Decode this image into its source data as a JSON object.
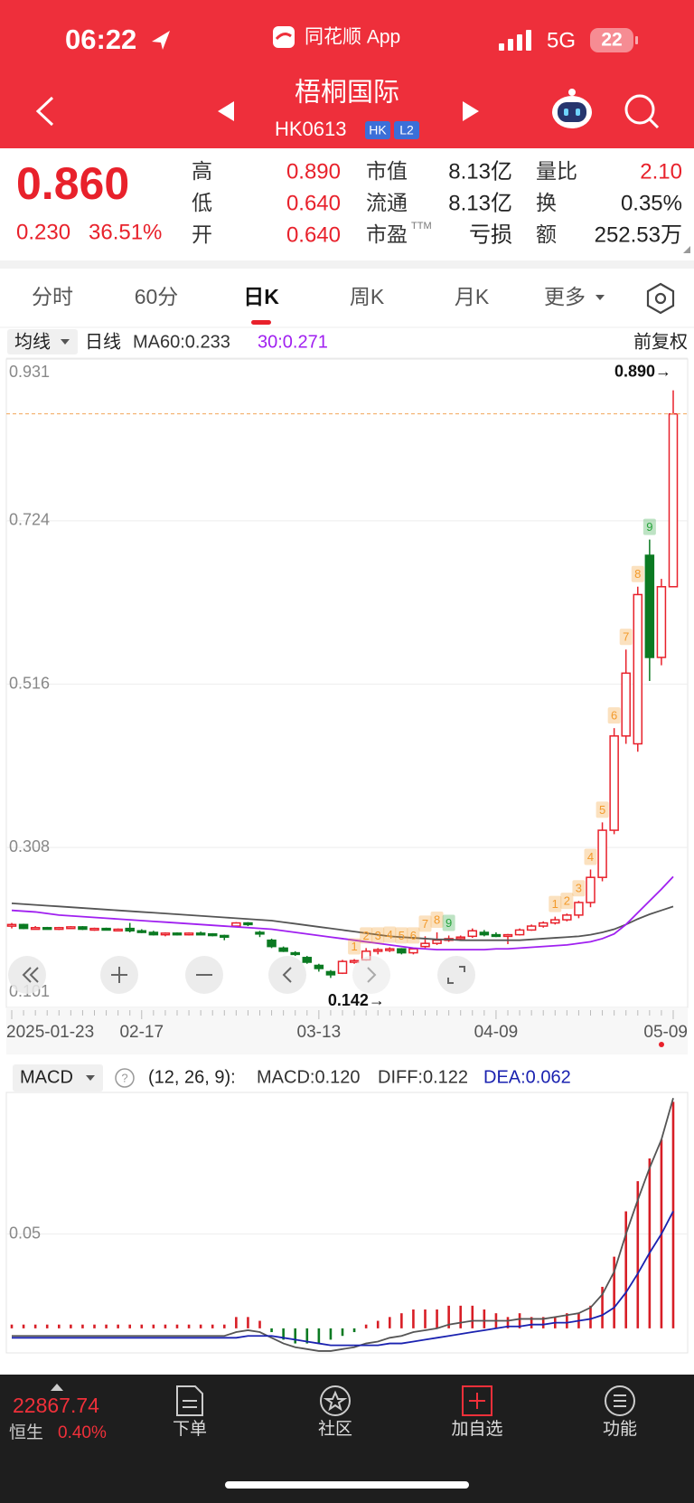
{
  "status": {
    "time": "06:22",
    "app": "同花顺 App",
    "network": "5G",
    "battery": "22"
  },
  "header": {
    "name": "梧桐国际",
    "code": "HK0613",
    "badges": [
      "HK",
      "L2"
    ]
  },
  "quote": {
    "price": "0.860",
    "change": "0.230",
    "change_pct": "36.51%",
    "fields": [
      {
        "label": "高",
        "value": "0.890",
        "color": "#e8212b"
      },
      {
        "label": "低",
        "value": "0.640",
        "color": "#e8212b"
      },
      {
        "label": "开",
        "value": "0.640",
        "color": "#e8212b"
      },
      {
        "label": "市值",
        "value": "8.13亿",
        "color": "#222222"
      },
      {
        "label": "流通",
        "value": "8.13亿",
        "color": "#222222"
      },
      {
        "label": "市盈",
        "sup": "TTM",
        "value": "亏损",
        "color": "#222222"
      },
      {
        "label": "量比",
        "value": "2.10",
        "color": "#e8212b"
      },
      {
        "label": "换",
        "value": "0.35%",
        "color": "#222222"
      },
      {
        "label": "额",
        "value": "252.53万",
        "color": "#222222"
      }
    ]
  },
  "tabs": [
    "分时",
    "60分",
    "日K",
    "周K",
    "月K",
    "更多"
  ],
  "active_tab": 2,
  "chart_data": [
    {
      "type": "candlestick",
      "indicator": "均线",
      "period": "日线",
      "adjust": "前复权",
      "up_color": "#e8212b",
      "down_color": "#0b7a22",
      "categories": [
        "2025-01-23",
        null,
        null,
        null,
        null,
        null,
        null,
        null,
        null,
        null,
        null,
        "02-17",
        null,
        null,
        null,
        null,
        null,
        null,
        null,
        null,
        null,
        null,
        null,
        null,
        null,
        null,
        "03-13",
        null,
        null,
        null,
        null,
        null,
        null,
        null,
        null,
        null,
        null,
        null,
        null,
        null,
        null,
        "04-09",
        null,
        null,
        null,
        null,
        null,
        null,
        null,
        null,
        null,
        null,
        null,
        null,
        null,
        null,
        "05-09"
      ],
      "candles": [
        [
          0.208,
          0.212,
          0.205,
          0.21
        ],
        [
          0.21,
          0.211,
          0.204,
          0.205
        ],
        [
          0.205,
          0.208,
          0.204,
          0.206
        ],
        [
          0.206,
          0.207,
          0.204,
          0.205
        ],
        [
          0.205,
          0.207,
          0.203,
          0.206
        ],
        [
          0.206,
          0.208,
          0.205,
          0.207
        ],
        [
          0.207,
          0.208,
          0.203,
          0.204
        ],
        [
          0.204,
          0.206,
          0.202,
          0.205
        ],
        [
          0.205,
          0.206,
          0.203,
          0.204
        ],
        [
          0.204,
          0.205,
          0.202,
          0.204
        ],
        [
          0.205,
          0.212,
          0.2,
          0.202
        ],
        [
          0.202,
          0.204,
          0.199,
          0.2
        ],
        [
          0.2,
          0.202,
          0.196,
          0.197
        ],
        [
          0.197,
          0.2,
          0.195,
          0.199
        ],
        [
          0.199,
          0.2,
          0.196,
          0.198
        ],
        [
          0.198,
          0.2,
          0.196,
          0.199
        ],
        [
          0.199,
          0.201,
          0.197,
          0.198
        ],
        [
          0.198,
          0.199,
          0.195,
          0.196
        ],
        [
          0.196,
          0.197,
          0.19,
          0.195
        ],
        [
          0.208,
          0.213,
          0.207,
          0.212
        ],
        [
          0.212,
          0.213,
          0.208,
          0.21
        ],
        [
          0.2,
          0.202,
          0.194,
          0.198
        ],
        [
          0.19,
          0.192,
          0.18,
          0.182
        ],
        [
          0.18,
          0.182,
          0.175,
          0.176
        ],
        [
          0.174,
          0.176,
          0.17,
          0.172
        ],
        [
          0.168,
          0.17,
          0.16,
          0.162
        ],
        [
          0.158,
          0.16,
          0.15,
          0.154
        ],
        [
          0.15,
          0.152,
          0.142,
          0.146
        ],
        [
          0.148,
          0.165,
          0.147,
          0.163
        ],
        [
          0.163,
          0.166,
          0.16,
          0.164
        ],
        [
          0.165,
          0.18,
          0.164,
          0.176
        ],
        [
          0.176,
          0.18,
          0.172,
          0.178
        ],
        [
          0.178,
          0.181,
          0.175,
          0.179
        ],
        [
          0.179,
          0.18,
          0.172,
          0.174
        ],
        [
          0.174,
          0.18,
          0.172,
          0.179
        ],
        [
          0.182,
          0.195,
          0.18,
          0.186
        ],
        [
          0.186,
          0.2,
          0.184,
          0.19
        ],
        [
          0.19,
          0.196,
          0.188,
          0.192
        ],
        [
          0.192,
          0.196,
          0.19,
          0.194
        ],
        [
          0.195,
          0.205,
          0.193,
          0.202
        ],
        [
          0.2,
          0.203,
          0.195,
          0.197
        ],
        [
          0.197,
          0.2,
          0.194,
          0.196
        ],
        [
          0.196,
          0.198,
          0.185,
          0.197
        ],
        [
          0.197,
          0.205,
          0.196,
          0.203
        ],
        [
          0.203,
          0.21,
          0.202,
          0.208
        ],
        [
          0.208,
          0.214,
          0.206,
          0.212
        ],
        [
          0.212,
          0.22,
          0.21,
          0.216
        ],
        [
          0.216,
          0.224,
          0.214,
          0.222
        ],
        [
          0.222,
          0.24,
          0.218,
          0.238
        ],
        [
          0.238,
          0.28,
          0.232,
          0.27
        ],
        [
          0.27,
          0.34,
          0.265,
          0.33
        ],
        [
          0.33,
          0.46,
          0.325,
          0.45
        ],
        [
          0.45,
          0.56,
          0.44,
          0.53
        ],
        [
          0.44,
          0.64,
          0.43,
          0.63
        ],
        [
          0.68,
          0.7,
          0.52,
          0.55
        ],
        [
          0.55,
          0.65,
          0.54,
          0.64
        ],
        [
          0.64,
          0.89,
          0.64,
          0.86
        ]
      ],
      "series": [
        {
          "name": "MA60:0.233",
          "color": "#555555",
          "values": [
            0.237,
            0.236,
            0.235,
            0.234,
            0.233,
            0.232,
            0.231,
            0.23,
            0.229,
            0.228,
            0.227,
            0.226,
            0.225,
            0.224,
            0.223,
            0.222,
            0.221,
            0.22,
            0.219,
            0.218,
            0.217,
            0.216,
            0.215,
            0.213,
            0.211,
            0.209,
            0.207,
            0.205,
            0.203,
            0.201,
            0.199,
            0.197,
            0.195,
            0.194,
            0.193,
            0.192,
            0.191,
            0.191,
            0.19,
            0.19,
            0.19,
            0.19,
            0.19,
            0.19,
            0.191,
            0.192,
            0.193,
            0.194,
            0.195,
            0.197,
            0.2,
            0.204,
            0.21,
            0.217,
            0.223,
            0.228,
            0.233
          ]
        },
        {
          "name": "30:0.271",
          "color": "#a020f0",
          "values": [
            0.228,
            0.227,
            0.226,
            0.224,
            0.222,
            0.221,
            0.22,
            0.219,
            0.218,
            0.217,
            0.216,
            0.215,
            0.214,
            0.213,
            0.212,
            0.211,
            0.21,
            0.209,
            0.208,
            0.207,
            0.206,
            0.205,
            0.204,
            0.202,
            0.2,
            0.198,
            0.196,
            0.194,
            0.192,
            0.19,
            0.188,
            0.186,
            0.184,
            0.182,
            0.18,
            0.179,
            0.178,
            0.178,
            0.178,
            0.178,
            0.178,
            0.179,
            0.179,
            0.18,
            0.181,
            0.182,
            0.183,
            0.184,
            0.186,
            0.188,
            0.192,
            0.198,
            0.21,
            0.225,
            0.24,
            0.255,
            0.271
          ]
        }
      ],
      "ylim": [
        0.101,
        0.931
      ],
      "yticks": [
        0.931,
        0.724,
        0.516,
        0.308,
        0.101
      ],
      "annotations": {
        "high": "0.890→",
        "low": "0.142→"
      },
      "tags": [
        {
          "index": 29,
          "label": 1,
          "color": "#f39a2b"
        },
        {
          "index": 30,
          "label": 2,
          "color": "#f39a2b"
        },
        {
          "index": 31,
          "label": 3,
          "color": "#f39a2b"
        },
        {
          "index": 32,
          "label": 4,
          "color": "#f39a2b"
        },
        {
          "index": 33,
          "label": 5,
          "color": "#f39a2b"
        },
        {
          "index": 34,
          "label": 6,
          "color": "#f39a2b"
        },
        {
          "index": 35,
          "label": 7,
          "color": "#f39a2b"
        },
        {
          "index": 36,
          "label": 8,
          "color": "#f39a2b"
        },
        {
          "index": 37,
          "label": 9,
          "color": "#27a33b"
        },
        {
          "index": 46,
          "label": 1,
          "color": "#f39a2b"
        },
        {
          "index": 47,
          "label": 2,
          "color": "#f39a2b"
        },
        {
          "index": 48,
          "label": 3,
          "color": "#f39a2b"
        },
        {
          "index": 49,
          "label": 4,
          "color": "#f39a2b"
        },
        {
          "index": 50,
          "label": 5,
          "color": "#f39a2b"
        },
        {
          "index": 51,
          "label": 6,
          "color": "#f39a2b"
        },
        {
          "index": 52,
          "label": 7,
          "color": "#f39a2b"
        },
        {
          "index": 53,
          "label": 8,
          "color": "#f39a2b"
        },
        {
          "index": 54,
          "label": 9,
          "color": "#27a33b"
        }
      ]
    },
    {
      "type": "macd",
      "title": "MACD",
      "params": "(12, 26, 9):",
      "histogram_label": "MACD:0.120",
      "histogram": [
        0.002,
        0.002,
        0.002,
        0.002,
        0.002,
        0.002,
        0.002,
        0.002,
        0.002,
        0.002,
        0.002,
        0.002,
        0.002,
        0.002,
        0.002,
        0.002,
        0.002,
        0.002,
        0.002,
        0.006,
        0.006,
        0.004,
        -0.002,
        -0.006,
        -0.008,
        -0.008,
        -0.008,
        -0.006,
        -0.004,
        -0.002,
        0.002,
        0.004,
        0.006,
        0.008,
        0.01,
        0.01,
        0.01,
        0.012,
        0.012,
        0.012,
        0.01,
        0.008,
        0.006,
        0.008,
        0.006,
        0.006,
        0.006,
        0.008,
        0.008,
        0.012,
        0.022,
        0.038,
        0.062,
        0.078,
        0.09,
        0.1,
        0.12
      ],
      "up_color": "#d81e26",
      "down_color": "#0b7a22",
      "series": [
        {
          "name": "DIFF:0.122",
          "color": "#555555",
          "values": [
            -0.004,
            -0.004,
            -0.004,
            -0.004,
            -0.004,
            -0.004,
            -0.004,
            -0.004,
            -0.004,
            -0.004,
            -0.004,
            -0.004,
            -0.004,
            -0.004,
            -0.004,
            -0.004,
            -0.004,
            -0.004,
            -0.004,
            -0.002,
            -0.001,
            -0.002,
            -0.005,
            -0.008,
            -0.01,
            -0.011,
            -0.012,
            -0.012,
            -0.011,
            -0.01,
            -0.008,
            -0.007,
            -0.005,
            -0.004,
            -0.002,
            -0.001,
            0.0,
            0.002,
            0.003,
            0.004,
            0.004,
            0.004,
            0.004,
            0.005,
            0.005,
            0.005,
            0.006,
            0.007,
            0.008,
            0.011,
            0.018,
            0.03,
            0.05,
            0.068,
            0.085,
            0.1,
            0.122
          ]
        },
        {
          "name": "DEA:0.062",
          "color": "#1a22b0",
          "values": [
            -0.005,
            -0.005,
            -0.005,
            -0.005,
            -0.005,
            -0.005,
            -0.005,
            -0.005,
            -0.005,
            -0.005,
            -0.005,
            -0.005,
            -0.005,
            -0.005,
            -0.005,
            -0.005,
            -0.005,
            -0.005,
            -0.005,
            -0.005,
            -0.004,
            -0.004,
            -0.004,
            -0.005,
            -0.006,
            -0.007,
            -0.008,
            -0.009,
            -0.009,
            -0.009,
            -0.009,
            -0.009,
            -0.008,
            -0.008,
            -0.007,
            -0.006,
            -0.005,
            -0.004,
            -0.003,
            -0.002,
            -0.001,
            0.0,
            0.001,
            0.001,
            0.002,
            0.002,
            0.003,
            0.003,
            0.004,
            0.005,
            0.007,
            0.011,
            0.019,
            0.029,
            0.04,
            0.05,
            0.062
          ]
        }
      ],
      "ylim": [
        -0.013,
        0.125
      ],
      "yticks": [
        0.05
      ]
    }
  ],
  "footer": {
    "index_value": "22867.74",
    "index_name": "恒生",
    "index_change": "0.40%"
  },
  "nav": [
    "下单",
    "社区",
    "加自选",
    "功能"
  ]
}
